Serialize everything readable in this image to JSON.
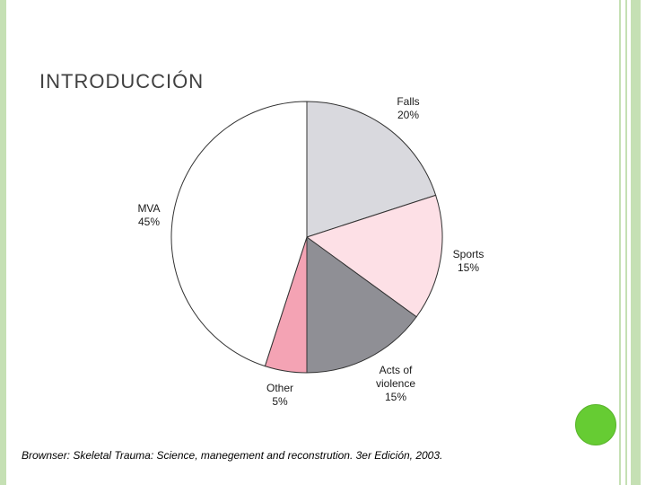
{
  "slide": {
    "title": "INTRODUCCIÓN",
    "citation": "Brownser: Skeletal Trauma: Science, manegement and reconstrution. 3er Edición, 2003."
  },
  "colors": {
    "border": "#c5e0b4",
    "accent_circle": "#66cc33"
  },
  "chart_data": {
    "type": "pie",
    "slices": [
      {
        "label_lines": [
          "Falls",
          "20%"
        ],
        "value": 20,
        "color": "#d9d9de"
      },
      {
        "label_lines": [
          "Sports",
          "15%"
        ],
        "value": 15,
        "color": "#fde0e6"
      },
      {
        "label_lines": [
          "Acts of",
          "violence",
          "15%"
        ],
        "value": 15,
        "color": "#8f8f95"
      },
      {
        "label_lines": [
          "Other",
          "5%"
        ],
        "value": 5,
        "color": "#f4a3b4"
      },
      {
        "label_lines": [
          "MVA",
          "45%"
        ],
        "value": 45,
        "color": "#ffffff"
      }
    ],
    "start": "12 o'clock",
    "direction": "clockwise"
  }
}
